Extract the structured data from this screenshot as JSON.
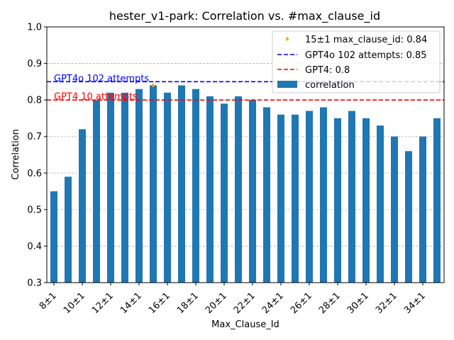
{
  "chart_data": {
    "type": "bar",
    "title": "hester_v1-park: Correlation vs. #max_clause_id",
    "xlabel": "Max_Clause_Id",
    "ylabel": "Correlation",
    "ylim": [
      0.3,
      1.0
    ],
    "yticks": [
      "0.3",
      "0.4",
      "0.5",
      "0.6",
      "0.7",
      "0.8",
      "0.9",
      "1.0"
    ],
    "grid": "y-dashed",
    "legend_position": "top-right",
    "categories": [
      "8±1",
      "9±1",
      "10±1",
      "11±1",
      "12±1",
      "13±1",
      "14±1",
      "15±1",
      "16±1",
      "17±1",
      "18±1",
      "19±1",
      "20±1",
      "21±1",
      "22±1",
      "23±1",
      "24±1",
      "25±1",
      "26±1",
      "27±1",
      "28±1",
      "29±1",
      "30±1",
      "31±1",
      "32±1",
      "33±1",
      "34±1",
      "35±1"
    ],
    "xtick_labels": [
      "8±1",
      "10±1",
      "12±1",
      "14±1",
      "16±1",
      "18±1",
      "20±1",
      "22±1",
      "24±1",
      "26±1",
      "28±1",
      "30±1",
      "32±1",
      "34±1"
    ],
    "series": [
      {
        "name": "correlation",
        "color": "#1f77b4",
        "values": [
          0.55,
          0.59,
          0.72,
          0.8,
          0.82,
          0.82,
          0.83,
          0.84,
          0.82,
          0.84,
          0.83,
          0.81,
          0.79,
          0.81,
          0.8,
          0.78,
          0.76,
          0.76,
          0.77,
          0.78,
          0.75,
          0.77,
          0.75,
          0.73,
          0.7,
          0.66,
          0.7,
          0.75
        ]
      }
    ],
    "highlight_point": {
      "category": "15±1",
      "value": 0.84,
      "color": "#ffa500",
      "legend": "15±1 max_clause_id: 0.84"
    },
    "reference_lines": [
      {
        "value": 0.85,
        "color": "#0000ff",
        "legend": "GPT4o 102 attempts: 0.85",
        "annotation": "GPT4o 102 attempts"
      },
      {
        "value": 0.8,
        "color": "#ff0000",
        "legend": "GPT4: 0.8",
        "annotation": "GPT4 10 attempts"
      }
    ],
    "bar_legend": "correlation"
  }
}
